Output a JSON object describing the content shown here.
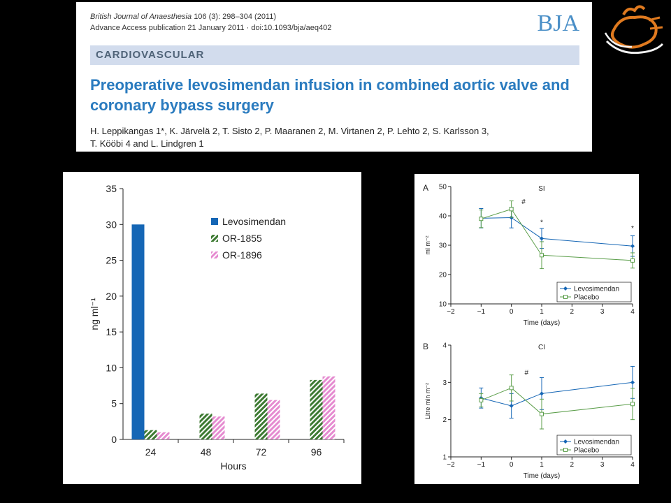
{
  "header": {
    "journal": "British Journal of Anaesthesia",
    "volume_line": "106 (3): 298–304 (2011)",
    "advance_line": "Advance Access publication 21 January 2011 · doi:10.1093/bja/aeq402",
    "logo": "BJA",
    "section": "CARDIOVASCULAR",
    "title": "Preoperative levosimendan infusion in combined aortic valve and coronary bypass surgery",
    "authors_line1": "H. Leppikangas 1*, K. Järvelä 2, T. Sisto 2, P. Maaranen 2, M. Virtanen 2, P. Lehto 2, S. Karlsson 3,",
    "authors_line2": "T. Kööbi 4 and L. Lindgren 1"
  },
  "colors": {
    "levosimendan": "#1566b5",
    "or1855": "#3d7a32",
    "or1896": "#e58bd0",
    "placebo": "#5b9e4a",
    "title_blue": "#2a7bbf"
  },
  "chart_data": [
    {
      "type": "bar",
      "xlabel": "Hours",
      "ylabel": "ng ml⁻¹",
      "categories": [
        "24",
        "48",
        "72",
        "96"
      ],
      "ylim": [
        0,
        35
      ],
      "yticks": [
        0,
        5,
        10,
        15,
        20,
        25,
        30,
        35
      ],
      "legend": "top-right",
      "series": [
        {
          "name": "Levosimendan",
          "values": [
            30,
            null,
            null,
            null
          ]
        },
        {
          "name": "OR-1855",
          "values": [
            1.3,
            3.6,
            6.4,
            8.3
          ]
        },
        {
          "name": "OR-1896",
          "values": [
            1.0,
            3.2,
            5.5,
            8.8
          ]
        }
      ]
    },
    {
      "type": "line",
      "panel_label": "A",
      "title": "SI",
      "xlabel": "Time (days)",
      "ylabel": "ml m⁻²",
      "xlim": [
        -2,
        4
      ],
      "ylim": [
        10,
        50
      ],
      "xticks": [
        -2,
        -1,
        0,
        1,
        2,
        3,
        4
      ],
      "yticks": [
        10,
        20,
        30,
        40,
        50
      ],
      "legend": "bottom-right",
      "annotations": [
        {
          "text": "#",
          "x": 0.4,
          "y": 44
        },
        {
          "text": "*",
          "x": 1,
          "y": 37
        },
        {
          "text": "*",
          "x": 4,
          "y": 35
        }
      ],
      "series": [
        {
          "name": "Levosimendan",
          "x": [
            -1,
            0,
            1,
            4
          ],
          "y": [
            39.2,
            39.4,
            32.3,
            29.7
          ],
          "err": [
            3.3,
            3.5,
            3.4,
            3.5
          ]
        },
        {
          "name": "Placebo",
          "x": [
            -1,
            0,
            1,
            4
          ],
          "y": [
            39.0,
            42.3,
            26.6,
            24.8
          ],
          "err": [
            3.0,
            2.8,
            4.6,
            2.6
          ]
        }
      ]
    },
    {
      "type": "line",
      "panel_label": "B",
      "title": "CI",
      "xlabel": "Time (days)",
      "ylabel": "Litre min m⁻²",
      "xlim": [
        -2,
        4
      ],
      "ylim": [
        1,
        4
      ],
      "xticks": [
        -2,
        -1,
        0,
        1,
        2,
        3,
        4
      ],
      "yticks": [
        1,
        2,
        3,
        4
      ],
      "legend": "bottom-right",
      "annotations": [
        {
          "text": "#",
          "x": 0.5,
          "y": 3.2
        }
      ],
      "series": [
        {
          "name": "Levosimendan",
          "x": [
            -1,
            0,
            1,
            4
          ],
          "y": [
            2.58,
            2.37,
            2.7,
            3.0
          ],
          "err": [
            0.27,
            0.33,
            0.43,
            0.43
          ]
        },
        {
          "name": "Placebo",
          "x": [
            -1,
            0,
            1,
            4
          ],
          "y": [
            2.52,
            2.85,
            2.15,
            2.42
          ],
          "err": [
            0.18,
            0.35,
            0.4,
            0.42
          ]
        }
      ]
    }
  ]
}
